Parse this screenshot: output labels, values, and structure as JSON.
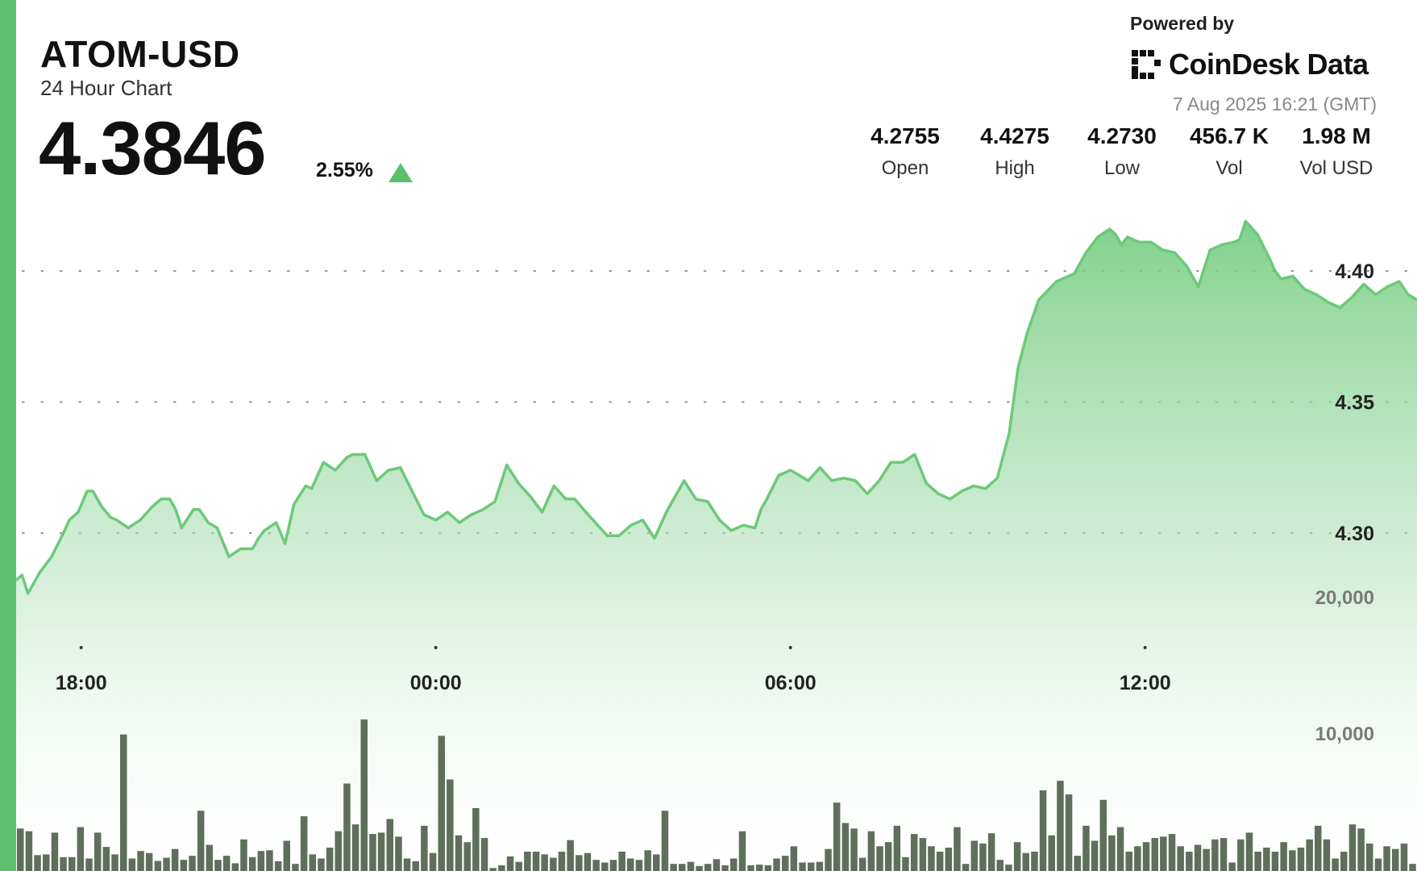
{
  "header": {
    "pair": "ATOM-USD",
    "subtitle": "24 Hour Chart",
    "price": "4.3846",
    "change_pct": "2.55%",
    "change_direction": "up-triangle-icon",
    "powered_by": "Powered by",
    "brand": "CoinDesk Data",
    "timestamp": "7 Aug 2025 16:21 (GMT)"
  },
  "stats": [
    {
      "value": "4.2755",
      "label": "Open"
    },
    {
      "value": "4.4275",
      "label": "High"
    },
    {
      "value": "4.2730",
      "label": "Low"
    },
    {
      "value": "456.7 K",
      "label": "Vol"
    },
    {
      "value": "1.98 M",
      "label": "Vol USD"
    }
  ],
  "colors": {
    "accent": "#5cbf6c",
    "line": "#6cc979",
    "volume_bar": "#5f6f5c",
    "grid": "#9a9a9a",
    "volume_axis_text": "#7a7a7a"
  },
  "chart_data": {
    "type": "line",
    "title": "ATOM-USD",
    "subtitle": "24 Hour Chart",
    "price_axis": {
      "ticks": [
        4.3,
        4.35,
        4.4
      ],
      "tick_labels": [
        "4.30",
        "4.35",
        "4.40"
      ]
    },
    "volume_axis": {
      "ticks": [
        10000,
        20000
      ],
      "tick_labels": [
        "10,000",
        "20,000"
      ]
    },
    "x_axis": {
      "tick_hours": [
        18,
        24,
        30,
        36
      ],
      "tick_labels": [
        "18:00",
        "00:00",
        "06:00",
        "12:00"
      ]
    },
    "x_range_hours": [
      16.9,
      40.6
    ],
    "grid": "dotted horizontal",
    "series": [
      {
        "kind": "price",
        "x_hours": [
          16.9,
          17.0,
          17.1,
          17.3,
          17.5,
          17.7,
          17.8,
          17.95,
          18.1,
          18.2,
          18.35,
          18.5,
          18.6,
          18.8,
          19.0,
          19.2,
          19.35,
          19.5,
          19.6,
          19.7,
          19.9,
          20.0,
          20.15,
          20.3,
          20.5,
          20.7,
          20.9,
          21.0,
          21.1,
          21.3,
          21.45,
          21.6,
          21.8,
          21.9,
          22.0,
          22.1,
          22.3,
          22.5,
          22.6,
          22.8,
          23.0,
          23.2,
          23.4,
          23.6,
          23.8,
          24.0,
          24.2,
          24.4,
          24.6,
          24.8,
          25.0,
          25.2,
          25.4,
          25.6,
          25.8,
          26.0,
          26.2,
          26.35,
          26.5,
          26.7,
          26.9,
          27.1,
          27.3,
          27.5,
          27.7,
          27.9,
          28.0,
          28.2,
          28.4,
          28.6,
          28.8,
          29.0,
          29.2,
          29.4,
          29.5,
          29.6,
          29.8,
          30.0,
          30.15,
          30.3,
          30.5,
          30.7,
          30.9,
          31.1,
          31.3,
          31.5,
          31.7,
          31.9,
          32.1,
          32.3,
          32.5,
          32.7,
          32.9,
          33.1,
          33.3,
          33.5,
          33.7,
          33.85,
          34.0,
          34.2,
          34.5,
          34.8,
          35.0,
          35.2,
          35.4,
          35.5,
          35.6,
          35.7,
          35.9,
          36.1,
          36.3,
          36.5,
          36.7,
          36.9,
          37.1,
          37.3,
          37.5,
          37.6,
          37.7,
          37.9,
          38.1,
          38.2,
          38.3,
          38.5,
          38.7,
          38.9,
          39.1,
          39.3,
          39.5,
          39.7,
          39.9,
          40.1,
          40.3,
          40.45,
          40.6
        ],
        "values": [
          4.282,
          4.284,
          4.277,
          4.285,
          4.291,
          4.3,
          4.305,
          4.308,
          4.316,
          4.316,
          4.31,
          4.306,
          4.305,
          4.302,
          4.305,
          4.31,
          4.313,
          4.313,
          4.309,
          4.302,
          4.309,
          4.309,
          4.304,
          4.302,
          4.291,
          4.294,
          4.294,
          4.298,
          4.301,
          4.304,
          4.296,
          4.311,
          4.318,
          4.317,
          4.322,
          4.327,
          4.324,
          4.329,
          4.33,
          4.33,
          4.32,
          4.324,
          4.325,
          4.316,
          4.307,
          4.305,
          4.308,
          4.304,
          4.307,
          4.309,
          4.312,
          4.326,
          4.319,
          4.314,
          4.308,
          4.318,
          4.313,
          4.313,
          4.309,
          4.304,
          4.299,
          4.299,
          4.303,
          4.305,
          4.298,
          4.308,
          4.312,
          4.32,
          4.313,
          4.312,
          4.305,
          4.301,
          4.303,
          4.302,
          4.309,
          4.313,
          4.322,
          4.324,
          4.322,
          4.32,
          4.325,
          4.32,
          4.321,
          4.32,
          4.315,
          4.32,
          4.327,
          4.327,
          4.33,
          4.319,
          4.315,
          4.313,
          4.316,
          4.318,
          4.317,
          4.321,
          4.338,
          4.363,
          4.376,
          4.389,
          4.396,
          4.399,
          4.407,
          4.413,
          4.416,
          4.414,
          4.41,
          4.413,
          4.411,
          4.411,
          4.408,
          4.407,
          4.402,
          4.394,
          4.408,
          4.41,
          4.411,
          4.412,
          4.419,
          4.414,
          4.405,
          4.4,
          4.397,
          4.398,
          4.393,
          4.391,
          4.388,
          4.386,
          4.39,
          4.395,
          4.391,
          4.394,
          4.396,
          4.391,
          4.389
        ]
      },
      {
        "kind": "volume",
        "values": [
          3000,
          2800,
          1050,
          1100,
          2700,
          900,
          900,
          3100,
          800,
          2700,
          1650,
          1100,
          9900,
          800,
          1350,
          1200,
          620,
          850,
          1500,
          700,
          1000,
          4300,
          1800,
          700,
          1000,
          450,
          2200,
          900,
          1350,
          1400,
          600,
          2100,
          400,
          3900,
          1100,
          800,
          1600,
          2800,
          6300,
          3300,
          11000,
          2600,
          2700,
          3700,
          2400,
          800,
          600,
          3200,
          1200,
          9800,
          6600,
          2500,
          2000,
          4500,
          2300,
          100,
          300,
          950,
          550,
          1300,
          1300,
          1100,
          850,
          1300,
          2150,
          1050,
          1200,
          700,
          500,
          700,
          1300,
          800,
          700,
          1400,
          1100,
          4300,
          400,
          400,
          550,
          250,
          400,
          750,
          300,
          800,
          2800,
          300,
          350,
          300,
          800,
          1000,
          1700,
          500,
          500,
          550,
          1500,
          4900,
          3400,
          3000,
          850,
          2800,
          1700,
          2000,
          3200,
          900,
          2600,
          2300,
          1700,
          1300,
          1600,
          3100,
          400,
          2100,
          1900,
          2650,
          700,
          350,
          2000,
          1200,
          1300,
          5800,
          2500,
          6500,
          5500,
          1000,
          3200,
          2100,
          5100,
          2500,
          3100,
          1300,
          1700,
          2000,
          2300,
          2400,
          2600,
          1700,
          1300,
          1800,
          1500,
          2200,
          2300,
          500,
          2200,
          2700,
          1300,
          1600,
          1300,
          2000,
          1400,
          1600,
          2200,
          3200,
          2200,
          800,
          1300,
          3300,
          3000,
          1900,
          800,
          1700,
          1500,
          1900,
          400
        ]
      }
    ]
  }
}
